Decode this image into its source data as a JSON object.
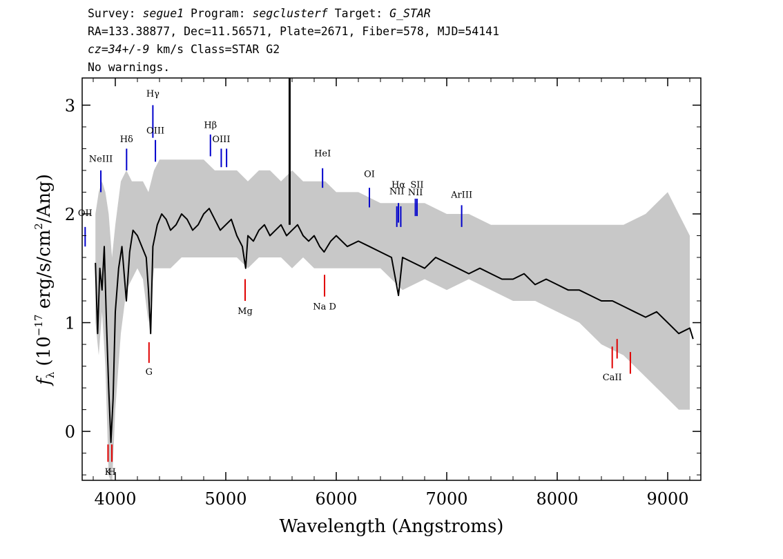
{
  "header": {
    "line1": {
      "survey_label": "Survey: ",
      "survey": "segue1",
      "program_label": " Program: ",
      "program": "segclusterf",
      "target_label": " Target: ",
      "target": "G_STAR"
    },
    "line2": "RA=133.38877, Dec=11.56571, Plate=2671, Fiber=578, MJD=54141",
    "line3": {
      "cz": "cz=34+/-9",
      "rest": " km/s Class=STAR G2"
    },
    "line4": "No warnings."
  },
  "chart_data": {
    "type": "line",
    "xlabel": "Wavelength (Angstroms)",
    "ylabel": "fλ (10⁻¹⁷ erg/s/cm²/Ang)",
    "ylabel_parts": {
      "f": "f",
      "lambda": "λ",
      "pre": " (10",
      "exp1": "−17",
      "mid": " erg/s/cm",
      "exp2": "2",
      "post": "/Ang)"
    },
    "xlim": [
      3700,
      9300
    ],
    "ylim": [
      -0.45,
      3.25
    ],
    "xticks": [
      4000,
      5000,
      6000,
      7000,
      8000,
      9000
    ],
    "xtick_labels": [
      "4000",
      "5000",
      "6000",
      "7000",
      "8000",
      "9000"
    ],
    "yticks": [
      0,
      1,
      2,
      3
    ],
    "ytick_labels": [
      "0",
      "1",
      "2",
      "3"
    ],
    "grid": false,
    "series": [
      {
        "role": "error_envelope",
        "color": "#c8c8c8",
        "x": [
          3820,
          3850,
          3880,
          3910,
          3940,
          3970,
          4000,
          4050,
          4100,
          4150,
          4200,
          4250,
          4300,
          4350,
          4400,
          4500,
          4600,
          4700,
          4800,
          4900,
          5000,
          5100,
          5200,
          5300,
          5400,
          5500,
          5600,
          5700,
          5800,
          5900,
          6000,
          6200,
          6400,
          6600,
          6800,
          7000,
          7200,
          7400,
          7600,
          7800,
          8000,
          8200,
          8400,
          8600,
          8800,
          9000,
          9100,
          9200
        ],
        "low": [
          1.0,
          0.7,
          1.1,
          0.6,
          -0.4,
          -0.5,
          0.2,
          0.9,
          1.3,
          1.4,
          1.5,
          1.4,
          1.0,
          1.5,
          1.5,
          1.5,
          1.6,
          1.6,
          1.6,
          1.6,
          1.6,
          1.6,
          1.5,
          1.6,
          1.6,
          1.6,
          1.5,
          1.6,
          1.5,
          1.5,
          1.5,
          1.5,
          1.5,
          1.3,
          1.4,
          1.3,
          1.4,
          1.3,
          1.2,
          1.2,
          1.1,
          1.0,
          0.8,
          0.7,
          0.5,
          0.3,
          0.2,
          0.2
        ],
        "high": [
          2.0,
          2.2,
          2.3,
          2.2,
          2.0,
          1.6,
          1.9,
          2.3,
          2.4,
          2.3,
          2.3,
          2.3,
          2.2,
          2.4,
          2.5,
          2.5,
          2.5,
          2.5,
          2.5,
          2.4,
          2.4,
          2.4,
          2.3,
          2.4,
          2.4,
          2.3,
          2.4,
          2.3,
          2.3,
          2.3,
          2.2,
          2.2,
          2.1,
          2.1,
          2.1,
          2.0,
          2.0,
          1.9,
          1.9,
          1.9,
          1.9,
          1.9,
          1.9,
          1.9,
          2.0,
          2.2,
          2.0,
          1.8
        ]
      },
      {
        "role": "flux",
        "color": "#000000",
        "x": [
          3820,
          3840,
          3860,
          3880,
          3900,
          3920,
          3940,
          3960,
          3980,
          4000,
          4030,
          4060,
          4100,
          4130,
          4160,
          4200,
          4240,
          4280,
          4300,
          4320,
          4340,
          4380,
          4420,
          4460,
          4500,
          4550,
          4600,
          4650,
          4700,
          4750,
          4800,
          4850,
          4900,
          4950,
          5000,
          5050,
          5100,
          5150,
          5180,
          5200,
          5250,
          5300,
          5350,
          5400,
          5450,
          5500,
          5550,
          5600,
          5650,
          5700,
          5750,
          5800,
          5850,
          5890,
          5950,
          6000,
          6100,
          6200,
          6300,
          6400,
          6500,
          6563,
          6600,
          6700,
          6800,
          6900,
          7000,
          7100,
          7200,
          7300,
          7400,
          7500,
          7600,
          7700,
          7800,
          7900,
          8000,
          8100,
          8200,
          8300,
          8400,
          8500,
          8600,
          8700,
          8800,
          8900,
          9000,
          9100,
          9200,
          9230
        ],
        "y": [
          1.55,
          0.9,
          1.5,
          1.3,
          1.7,
          1.0,
          0.4,
          -0.1,
          0.3,
          1.1,
          1.5,
          1.7,
          1.2,
          1.65,
          1.85,
          1.8,
          1.7,
          1.6,
          1.3,
          0.9,
          1.7,
          1.9,
          2.0,
          1.95,
          1.85,
          1.9,
          2.0,
          1.95,
          1.85,
          1.9,
          2.0,
          2.05,
          1.95,
          1.85,
          1.9,
          1.95,
          1.8,
          1.7,
          1.5,
          1.8,
          1.75,
          1.85,
          1.9,
          1.8,
          1.85,
          1.9,
          1.8,
          1.85,
          1.9,
          1.8,
          1.75,
          1.8,
          1.7,
          1.65,
          1.75,
          1.8,
          1.7,
          1.75,
          1.7,
          1.65,
          1.6,
          1.25,
          1.6,
          1.55,
          1.5,
          1.6,
          1.55,
          1.5,
          1.45,
          1.5,
          1.45,
          1.4,
          1.4,
          1.45,
          1.35,
          1.4,
          1.35,
          1.3,
          1.3,
          1.25,
          1.2,
          1.2,
          1.15,
          1.1,
          1.05,
          1.1,
          1.0,
          0.9,
          0.95,
          0.85
        ]
      }
    ],
    "spike": {
      "x": 5578,
      "y_from": 1.9,
      "y_to": 3.25,
      "color": "#000000"
    },
    "line_markers_blue": [
      {
        "label": "OII",
        "x": 3727,
        "y1": 1.7,
        "y2": 1.88,
        "ly": 1.98
      },
      {
        "label": "NeIII",
        "x": 3869,
        "y1": 2.2,
        "y2": 2.4,
        "ly": 2.48
      },
      {
        "label": "Hδ",
        "x": 4102,
        "y1": 2.4,
        "y2": 2.6,
        "ly": 2.66
      },
      {
        "label": "Hγ",
        "x": 4340,
        "y1": 2.7,
        "y2": 3.0,
        "ly": 3.08
      },
      {
        "label": "OIII",
        "x": 4363,
        "y1": 2.48,
        "y2": 2.68,
        "ly": 2.74
      },
      {
        "label": "Hβ",
        "x": 4861,
        "y1": 2.53,
        "y2": 2.73,
        "ly": 2.79
      },
      {
        "label": "OIII",
        "x": 4959,
        "y1": 2.43,
        "y2": 2.6,
        "ly": 2.66
      },
      {
        "label": "",
        "x": 5007,
        "y1": 2.43,
        "y2": 2.6,
        "ly": 2.66
      },
      {
        "label": "HeI",
        "x": 5876,
        "y1": 2.24,
        "y2": 2.42,
        "ly": 2.53
      },
      {
        "label": "OI",
        "x": 6300,
        "y1": 2.06,
        "y2": 2.24,
        "ly": 2.34
      },
      {
        "label": "NII",
        "x": 6548,
        "y1": 1.88,
        "y2": 2.07,
        "ly": 2.18
      },
      {
        "label": "Hα",
        "x": 6563,
        "y1": 1.92,
        "y2": 2.1,
        "ly": 2.24
      },
      {
        "label": "",
        "x": 6584,
        "y1": 1.88,
        "y2": 2.07,
        "ly": 2.0
      },
      {
        "label": "NII",
        "x": 6716,
        "y1": 1.98,
        "y2": 2.14,
        "ly": 2.17
      },
      {
        "label": "SII",
        "x": 6731,
        "y1": 1.98,
        "y2": 2.14,
        "ly": 2.24
      },
      {
        "label": "ArIII",
        "x": 7135,
        "y1": 1.88,
        "y2": 2.08,
        "ly": 2.15
      }
    ],
    "line_markers_red": [
      {
        "label": "K",
        "x": 3934,
        "y1": -0.28,
        "y2": -0.12,
        "ly": -0.4
      },
      {
        "label": "H",
        "x": 3969,
        "y1": -0.28,
        "y2": -0.12,
        "ly": -0.4
      },
      {
        "label": "G",
        "x": 4305,
        "y1": 0.63,
        "y2": 0.82,
        "ly": 0.52
      },
      {
        "label": "Mg",
        "x": 5175,
        "y1": 1.2,
        "y2": 1.4,
        "ly": 1.08
      },
      {
        "label": "Na  D",
        "x": 5894,
        "y1": 1.24,
        "y2": 1.44,
        "ly": 1.12
      },
      {
        "label": "CaII",
        "x": 8498,
        "y1": 0.58,
        "y2": 0.78,
        "ly": 0.47
      },
      {
        "label": "",
        "x": 8542,
        "y1": 0.67,
        "y2": 0.85,
        "ly": 0.47
      },
      {
        "label": "",
        "x": 8662,
        "y1": 0.53,
        "y2": 0.73,
        "ly": 0.47
      }
    ],
    "marker_colors": {
      "emission": "#0000cc",
      "absorption": "#e00000"
    }
  }
}
